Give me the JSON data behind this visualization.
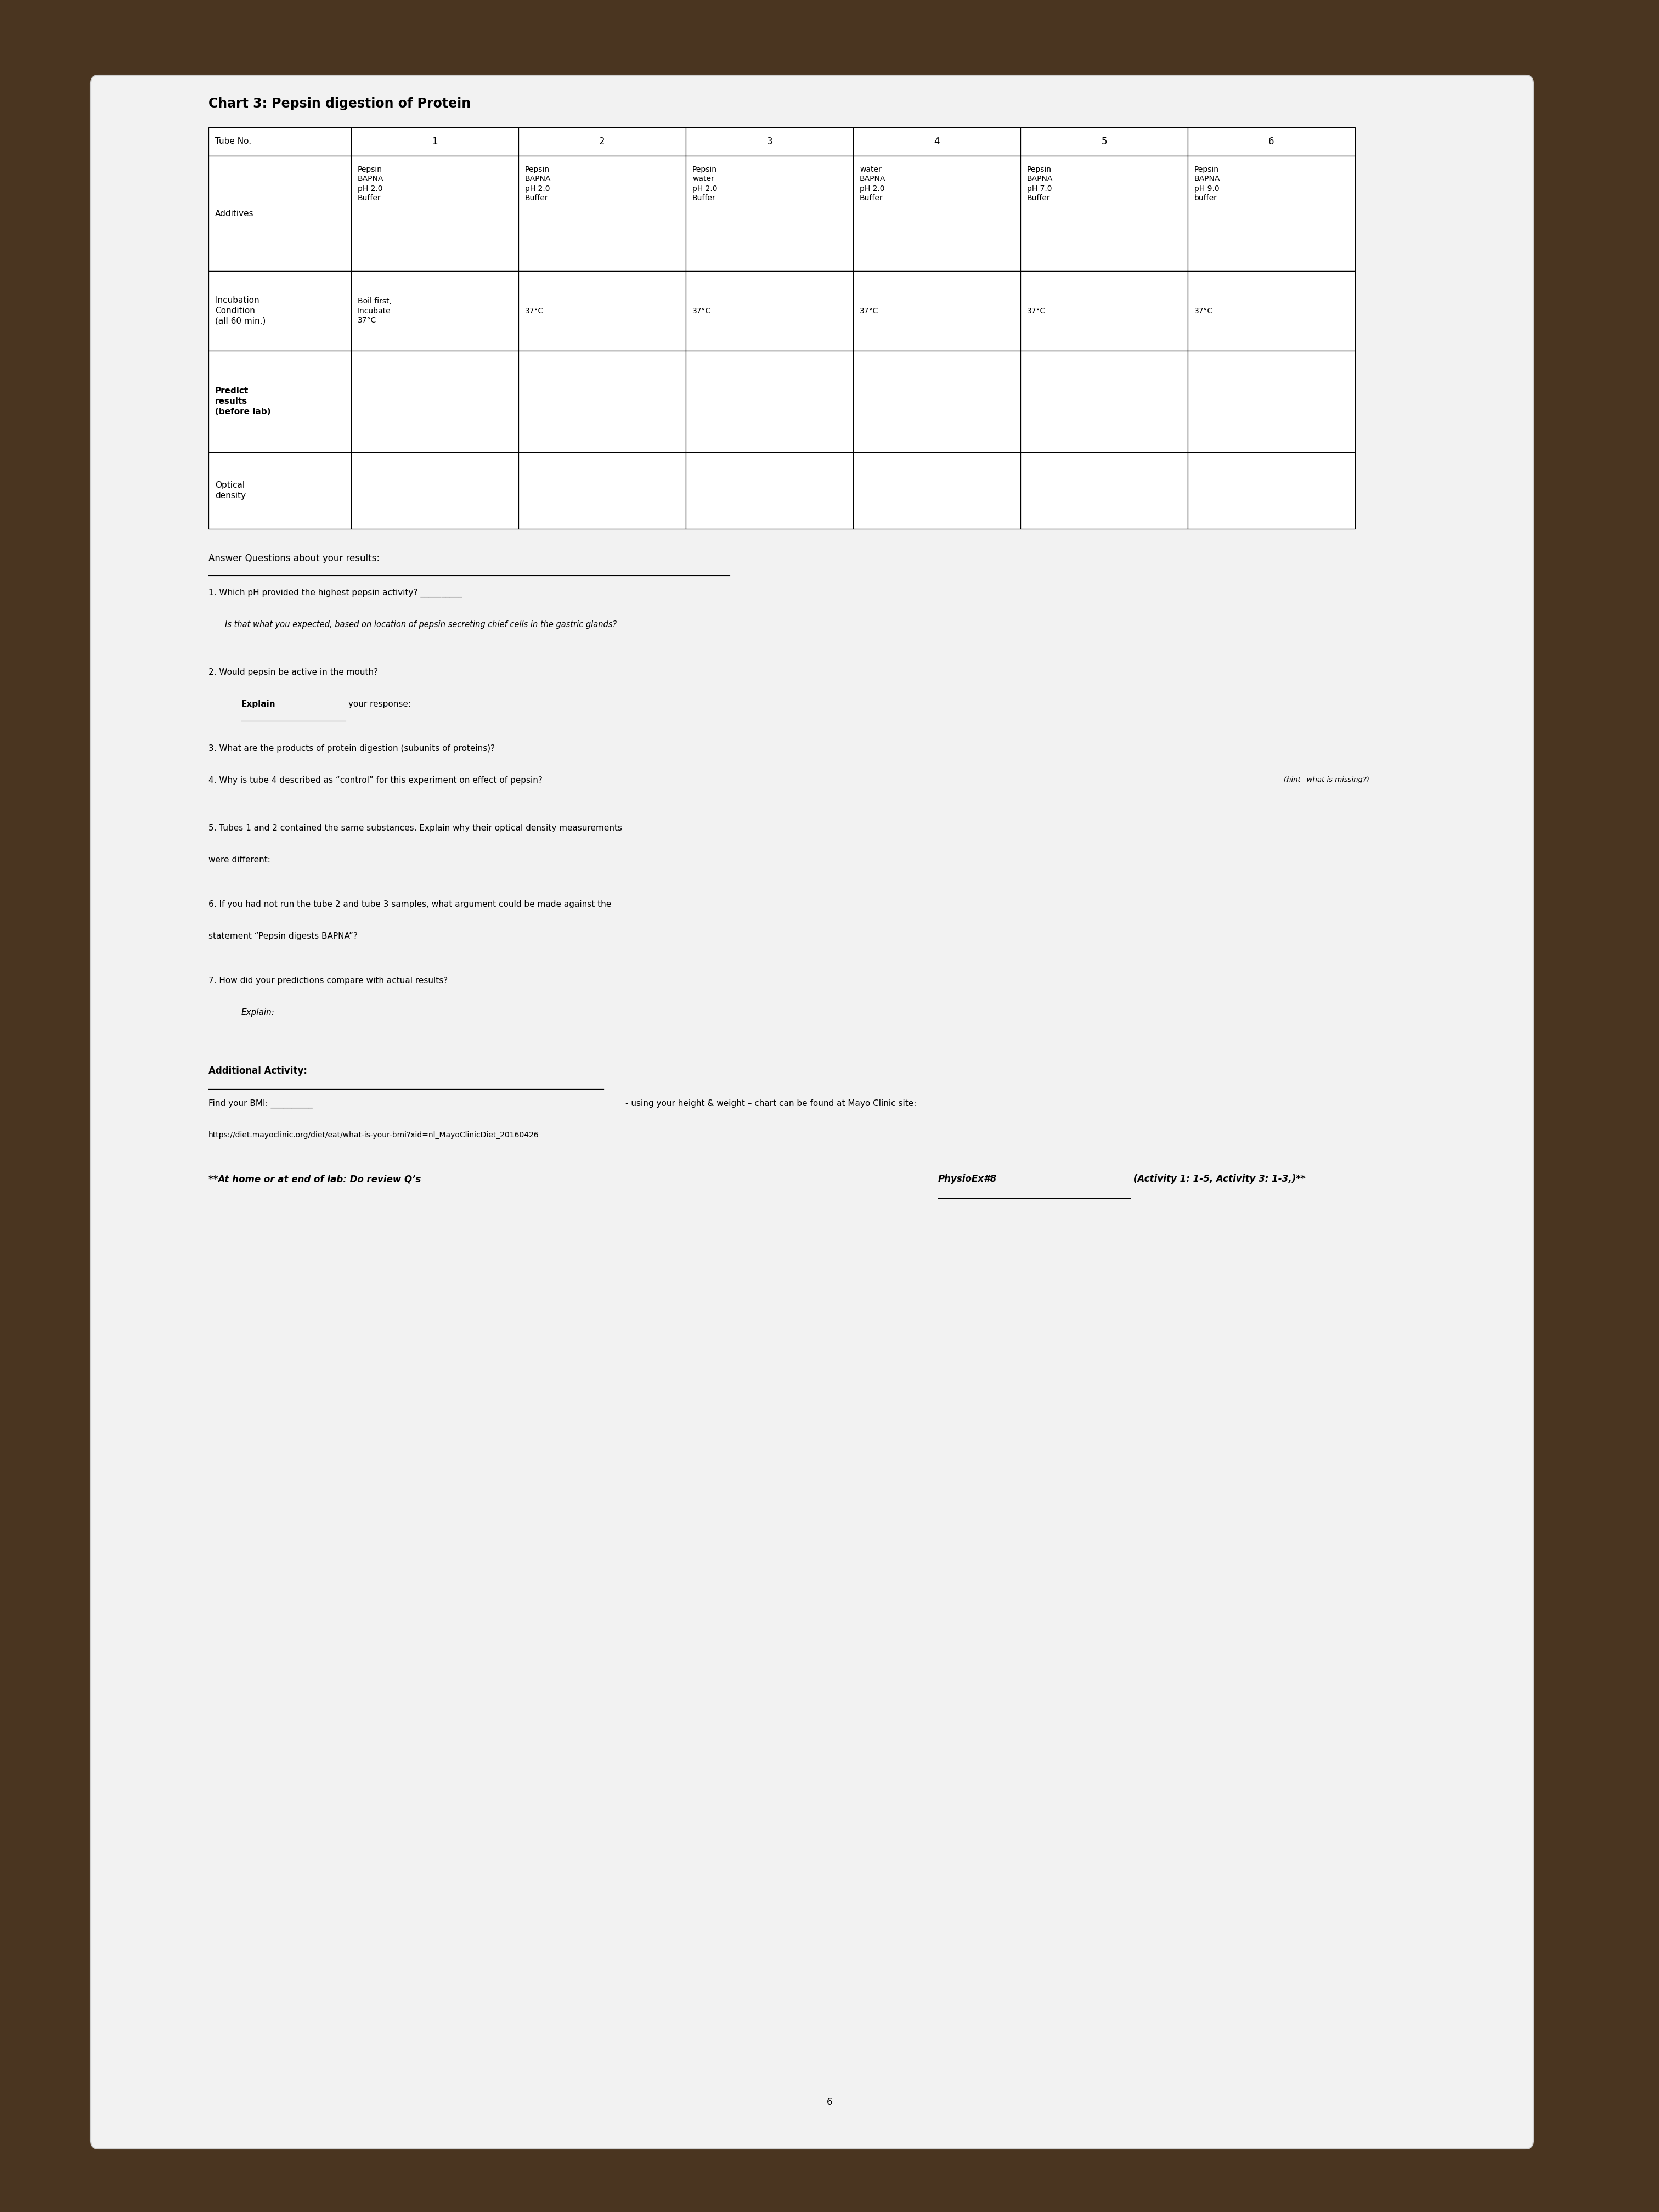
{
  "title": "Chart 3: Pepsin digestion of Protein",
  "col_headers": [
    "1",
    "2",
    "3",
    "4",
    "5",
    "6"
  ],
  "additives": [
    "Pepsin\nBAPNA\npH 2.0\nBuffer",
    "Pepsin\nBAPNA\npH 2.0\nBuffer",
    "Pepsin\nwater\npH 2.0\nBuffer",
    "water\nBAPNA\npH 2.0\nBuffer",
    "Pepsin\nBAPNA\npH 7.0\nBuffer",
    "Pepsin\nBAPNA\npH 9.0\nbuffer"
  ],
  "incubation": [
    "Boil first,\nIncubate\n37°C",
    "37°C",
    "37°C",
    "37°C",
    "37°C",
    "37°C"
  ],
  "row_labels": [
    "Tube No.",
    "Additives",
    "Incubation\nCondition\n(all 60 min.)",
    "Predict\nresults\n(before lab)",
    "Optical\ndensity"
  ],
  "bg_color": "#4a3520",
  "paper_color": "#f2f2f2"
}
